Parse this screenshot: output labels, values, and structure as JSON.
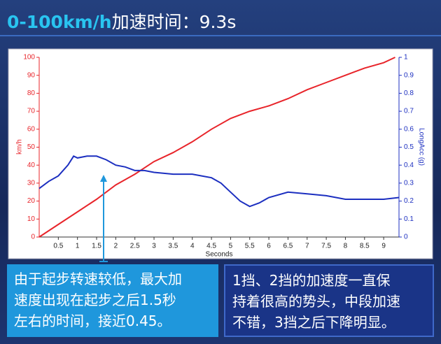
{
  "header": {
    "highlight": "0-100km/h",
    "title": "加速时间：9.3s"
  },
  "chart_data": {
    "type": "line",
    "xlabel": "Seconds",
    "ylabel": "km/h",
    "y2label": "LongAcc (g)",
    "xlim": [
      0,
      9.4
    ],
    "xticks": [
      0.5,
      1,
      1.5,
      2,
      2.5,
      3,
      3.5,
      4,
      4.5,
      5,
      5.5,
      6,
      6.5,
      7,
      7.5,
      8,
      8.5,
      9
    ],
    "ylim": [
      0,
      100
    ],
    "yticks": [
      0,
      10,
      20,
      30,
      40,
      50,
      60,
      70,
      80,
      90,
      100
    ],
    "y2lim": [
      0,
      1
    ],
    "y2ticks": [
      0,
      0.1,
      0.2,
      0.3,
      0.4,
      0.5,
      0.6,
      0.7,
      0.8,
      0.9,
      1
    ],
    "series": [
      {
        "color": "#e8242a",
        "axis": "y",
        "x": [
          0,
          0.5,
          1,
          1.5,
          2,
          2.5,
          3,
          3.5,
          4,
          4.5,
          5,
          5.5,
          6,
          6.5,
          7,
          7.5,
          8,
          8.5,
          9,
          9.3
        ],
        "values": [
          0,
          7,
          14,
          21,
          29,
          35,
          42,
          47,
          53,
          60,
          66,
          70,
          73,
          77,
          82,
          86,
          90,
          94,
          97,
          100
        ]
      },
      {
        "color": "#1c2fc0",
        "axis": "y2",
        "x": [
          0,
          0.25,
          0.5,
          0.75,
          0.9,
          1,
          1.25,
          1.5,
          1.75,
          2,
          2.25,
          2.5,
          2.75,
          3,
          3.5,
          4,
          4.5,
          4.75,
          5,
          5.25,
          5.5,
          5.75,
          6,
          6.5,
          7,
          7.5,
          8,
          8.5,
          9,
          9.4
        ],
        "values": [
          0.27,
          0.31,
          0.34,
          0.4,
          0.45,
          0.44,
          0.45,
          0.45,
          0.43,
          0.4,
          0.39,
          0.37,
          0.37,
          0.36,
          0.35,
          0.35,
          0.33,
          0.3,
          0.25,
          0.2,
          0.17,
          0.19,
          0.22,
          0.25,
          0.24,
          0.23,
          0.21,
          0.21,
          0.21,
          0.22
        ]
      }
    ]
  },
  "left_note": [
    "由于起步转速较低，最大加",
    "速度出现在起步之后1.5秒",
    "左右的时间，接近0.45。"
  ],
  "right_note": [
    "1挡、2挡的加速度一直保",
    "持着很高的势头，中段加速",
    "不错，3挡之后下降明显。"
  ]
}
